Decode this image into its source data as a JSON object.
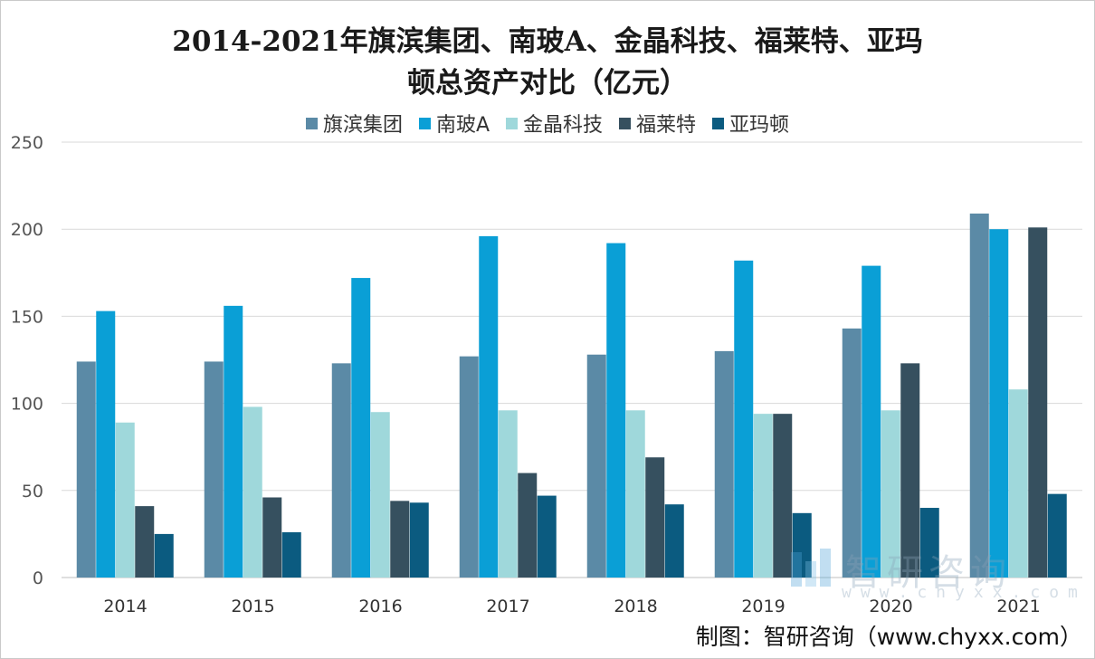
{
  "chart_data": {
    "type": "bar",
    "title_line1": "2014-2021年旗滨集团、南玻A、金晶科技、福莱特、亚玛",
    "title_line2": "顿总资产对比（亿元）",
    "categories": [
      "2014",
      "2015",
      "2016",
      "2017",
      "2018",
      "2019",
      "2020",
      "2021"
    ],
    "ylim": [
      0,
      250
    ],
    "yticks": [
      "0",
      "50",
      "100",
      "150",
      "200",
      "250"
    ],
    "grid": true,
    "legend_position": "top-center",
    "series": [
      {
        "name": "旗滨集团",
        "color": "#5b8aa6",
        "values": [
          124,
          124,
          123,
          127,
          128,
          130,
          143,
          209
        ]
      },
      {
        "name": "南玻A",
        "color": "#0a9fd6",
        "values": [
          153,
          156,
          172,
          196,
          192,
          182,
          179,
          200
        ]
      },
      {
        "name": "金晶科技",
        "color": "#9fd8db",
        "values": [
          89,
          98,
          95,
          96,
          96,
          94,
          96,
          108
        ]
      },
      {
        "name": "福莱特",
        "color": "#36505f",
        "values": [
          41,
          46,
          44,
          60,
          69,
          94,
          123,
          201
        ]
      },
      {
        "name": "亚玛顿",
        "color": "#0b5b80",
        "values": [
          25,
          26,
          43,
          47,
          42,
          37,
          40,
          48
        ]
      }
    ]
  },
  "watermark": {
    "name": "智研咨询",
    "url": "www.chyxx.com"
  },
  "source": "制图：智研咨询（www.chyxx.com）",
  "colors": {
    "grid": "#d9d9d9",
    "axis": "#bfbfbf",
    "tick_text": "#555555"
  }
}
